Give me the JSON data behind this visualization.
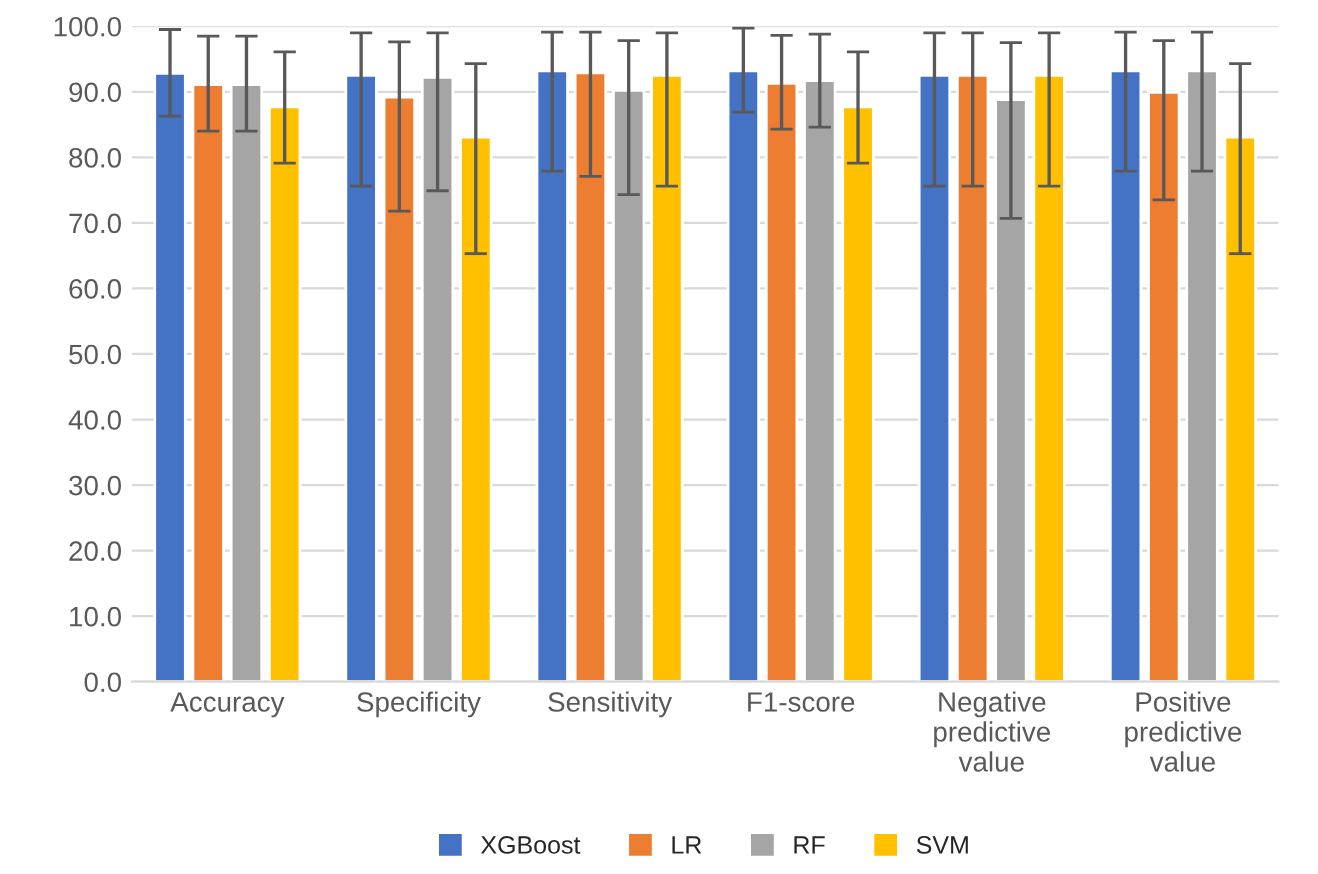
{
  "chart_data": {
    "type": "bar",
    "categories": [
      "Accuracy",
      "Specificity",
      "Sensitivity",
      "F1-score",
      "Negative predictive value",
      "Positive predictive value"
    ],
    "series": [
      {
        "name": "XGBoost",
        "color": "#4472c4",
        "values": [
          92.8,
          92.5,
          93.2,
          93.2,
          92.5,
          93.2
        ],
        "errors": [
          [
            86.3,
            99.5
          ],
          [
            75.6,
            99.0
          ],
          [
            77.9,
            99.1
          ],
          [
            86.9,
            99.7
          ],
          [
            75.6,
            99.0
          ],
          [
            77.9,
            99.1
          ]
        ]
      },
      {
        "name": "LR",
        "color": "#ed7d31",
        "values": [
          91.1,
          89.2,
          92.9,
          91.3,
          92.5,
          89.9
        ],
        "errors": [
          [
            84.0,
            98.5
          ],
          [
            71.8,
            97.6
          ],
          [
            77.1,
            99.1
          ],
          [
            84.3,
            98.6
          ],
          [
            75.6,
            99.0
          ],
          [
            73.5,
            97.8
          ]
        ]
      },
      {
        "name": "RF",
        "color": "#a5a5a5",
        "values": [
          91.1,
          92.2,
          90.2,
          91.7,
          88.8,
          93.2
        ],
        "errors": [
          [
            84.0,
            98.5
          ],
          [
            74.9,
            99.0
          ],
          [
            74.3,
            97.8
          ],
          [
            84.6,
            98.8
          ],
          [
            70.7,
            97.5
          ],
          [
            77.9,
            99.1
          ]
        ]
      },
      {
        "name": "SVM",
        "color": "#ffc000",
        "values": [
          87.7,
          83.1,
          92.5,
          87.7,
          92.5,
          83.1
        ],
        "errors": [
          [
            79.1,
            96.1
          ],
          [
            65.3,
            94.3
          ],
          [
            75.6,
            99.0
          ],
          [
            79.1,
            96.1
          ],
          [
            75.6,
            99.0
          ],
          [
            65.3,
            94.3
          ]
        ]
      }
    ],
    "ylim": [
      0,
      100
    ],
    "yticks": [
      {
        "value": 0,
        "label": "0.0"
      },
      {
        "value": 10,
        "label": "10.0"
      },
      {
        "value": 20,
        "label": "20.0"
      },
      {
        "value": 30,
        "label": "30.0"
      },
      {
        "value": 40,
        "label": "40.0"
      },
      {
        "value": 50,
        "label": "50.0"
      },
      {
        "value": 60,
        "label": "60.0"
      },
      {
        "value": 70,
        "label": "70.0"
      },
      {
        "value": 80,
        "label": "80.0"
      },
      {
        "value": 90,
        "label": "90.0"
      },
      {
        "value": 100,
        "label": "100.0"
      }
    ],
    "grid": "y",
    "legend": "bottom"
  }
}
